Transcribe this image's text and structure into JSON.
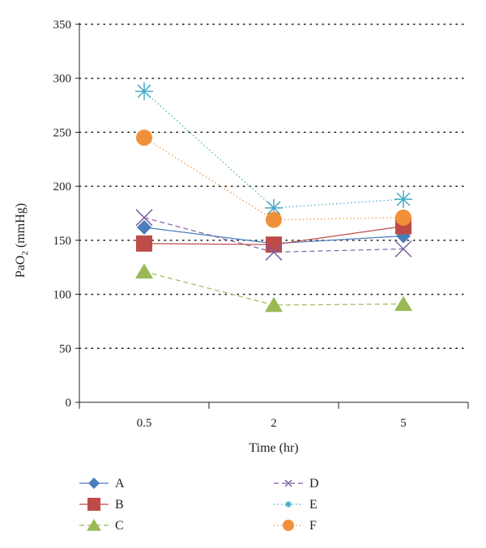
{
  "chart_data": {
    "type": "line",
    "title": "",
    "xlabel": "Time (hr)",
    "ylabel_main": "PaO",
    "ylabel_sub": "2",
    "ylabel_unit": " (mmHg)",
    "categories": [
      "0.5",
      "2",
      "5"
    ],
    "ylim": [
      0,
      350
    ],
    "yticks": [
      0,
      50,
      100,
      150,
      200,
      250,
      300,
      350
    ],
    "grid": "horizontal-dotted",
    "legend_placement": "bottom",
    "series": [
      {
        "name": "A",
        "values": [
          162,
          147,
          154
        ],
        "color": "#4a7ebb",
        "marker": "diamond",
        "dash": "solid"
      },
      {
        "name": "B",
        "values": [
          147,
          146,
          163
        ],
        "color": "#be4b48",
        "marker": "square",
        "dash": "solid"
      },
      {
        "name": "C",
        "values": [
          121,
          90,
          91
        ],
        "color": "#98b954",
        "marker": "triangle",
        "dash": "dashed"
      },
      {
        "name": "D",
        "values": [
          171,
          139,
          142
        ],
        "color": "#7d60a0",
        "marker": "x",
        "dash": "dashed"
      },
      {
        "name": "E",
        "values": [
          288,
          180,
          188
        ],
        "color": "#46aac5",
        "marker": "star",
        "dash": "dotted"
      },
      {
        "name": "F",
        "values": [
          245,
          169,
          171
        ],
        "color": "#f0913a",
        "marker": "circle",
        "dash": "dotted"
      }
    ]
  }
}
